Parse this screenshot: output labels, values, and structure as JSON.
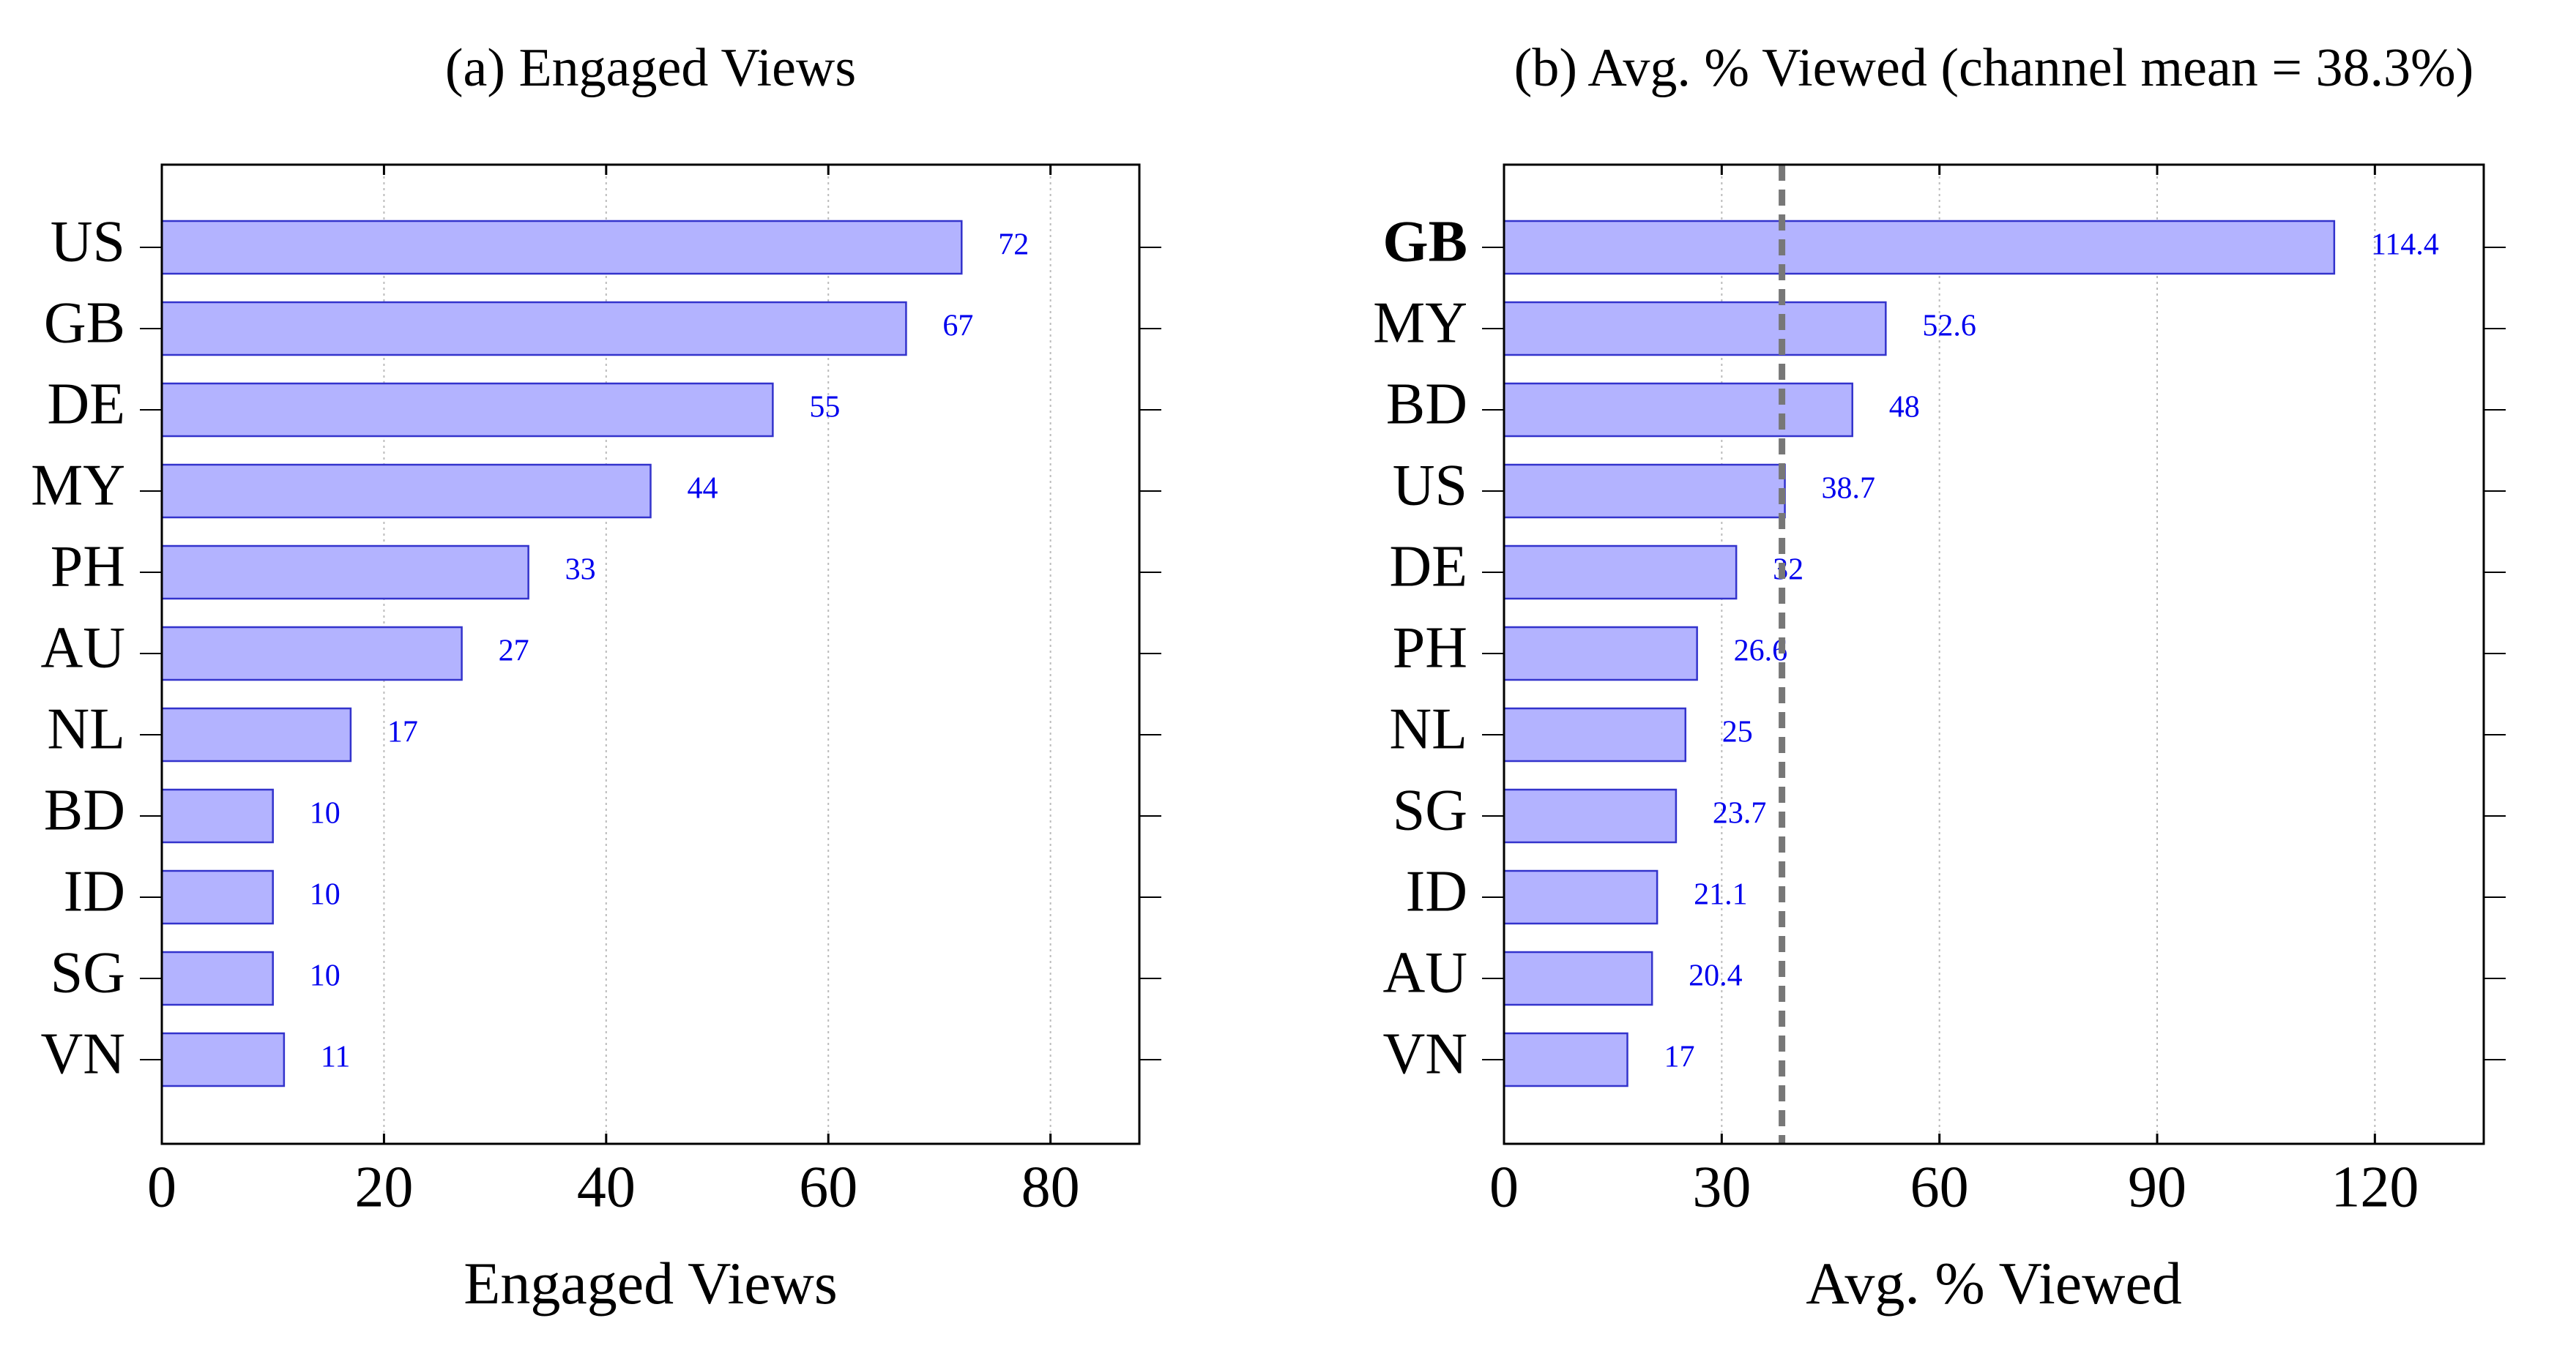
{
  "chart_data": [
    {
      "type": "barh",
      "title": "(a) Engaged Views",
      "xlabel": "Engaged Views",
      "categories": [
        "US",
        "GB",
        "DE",
        "MY",
        "PH",
        "AU",
        "NL",
        "BD",
        "ID",
        "SG",
        "VN"
      ],
      "values": [
        72,
        67,
        55,
        44,
        33,
        27,
        17,
        10,
        10,
        10,
        11
      ],
      "color": "#b3b3ff",
      "edgecolor": "#3333cc",
      "label_color": "#0000ee",
      "xlim": [
        0,
        88
      ],
      "xticks": [
        0,
        20,
        40,
        60,
        80
      ],
      "grid": true
    },
    {
      "type": "barh",
      "title": "(b) Avg. % Viewed (channel mean = 38.3%)",
      "xlabel": "Avg. % Viewed",
      "categories": [
        "GB",
        "MY",
        "BD",
        "US",
        "DE",
        "PH",
        "NL",
        "SG",
        "ID",
        "AU",
        "VN"
      ],
      "values": [
        114.4,
        52.6,
        48,
        38.7,
        32,
        26.6,
        25,
        23.7,
        21.1,
        20.4,
        17
      ],
      "color": "#b3b3ff",
      "edgecolor": "#3333cc",
      "label_color": "#0000ee",
      "xlim": [
        0,
        135
      ],
      "xticks": [
        0,
        30,
        60,
        90,
        120
      ],
      "grid": true,
      "mean": 38.3,
      "mean_color": "#777777",
      "bold_index": 0
    }
  ]
}
